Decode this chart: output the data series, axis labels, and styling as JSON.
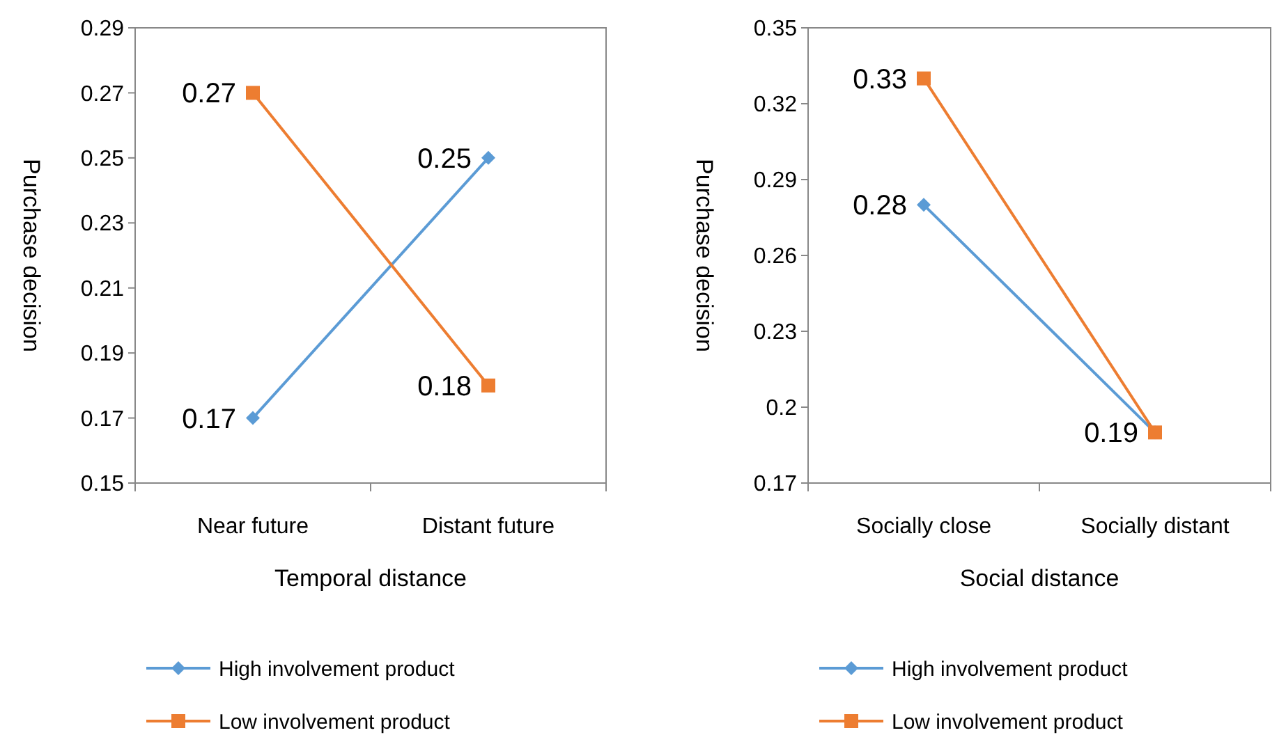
{
  "chart_data": [
    {
      "type": "line",
      "xlabel": "Temporal distance",
      "ylabel": "Purchase decision",
      "categories": [
        "Near future",
        "Distant future"
      ],
      "ylim": [
        0.15,
        0.29
      ],
      "yticks": [
        0.15,
        0.17,
        0.19,
        0.21,
        0.23,
        0.25,
        0.27,
        0.29
      ],
      "grid": false,
      "legend": "bottom",
      "data_labels": true,
      "series": [
        {
          "name": "High involvement product",
          "color": "#5b9bd5",
          "marker": "diamond",
          "values": [
            0.17,
            0.25
          ]
        },
        {
          "name": "Low involvement product",
          "color": "#ed7d31",
          "marker": "square",
          "values": [
            0.27,
            0.18
          ]
        }
      ]
    },
    {
      "type": "line",
      "xlabel": "Social distance",
      "ylabel": "Purchase decision",
      "categories": [
        "Socially close",
        "Socially distant"
      ],
      "ylim": [
        0.17,
        0.35
      ],
      "yticks": [
        0.17,
        0.2,
        0.23,
        0.26,
        0.29,
        0.32,
        0.35
      ],
      "grid": false,
      "legend": "bottom",
      "series": [
        {
          "name": "High involvement product",
          "color": "#5b9bd5",
          "marker": "diamond",
          "values": [
            0.28,
            0.19
          ],
          "value_labels": [
            "0.28",
            "0.19"
          ]
        },
        {
          "name": "Low involvement product",
          "color": "#ed7d31",
          "marker": "square",
          "values": [
            0.33,
            0.19
          ],
          "value_labels": [
            "0.33",
            null
          ]
        }
      ]
    }
  ]
}
